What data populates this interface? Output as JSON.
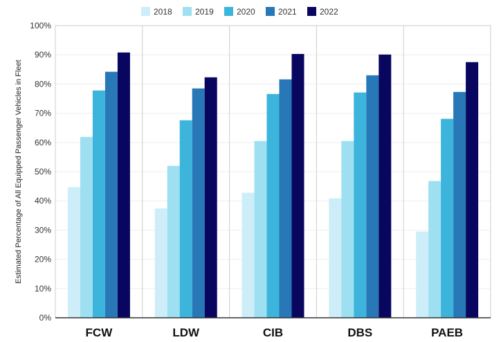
{
  "chart_data": {
    "type": "bar",
    "title": "",
    "xlabel": "",
    "ylabel": "Estimated Percentage of All Equipped Passenger Vehicles in Fleet",
    "ylim": [
      0,
      100
    ],
    "yticks": [
      "0%",
      "10%",
      "20%",
      "30%",
      "40%",
      "50%",
      "60%",
      "70%",
      "80%",
      "90%",
      "100%"
    ],
    "categories": [
      "FCW",
      "LDW",
      "CIB",
      "DBS",
      "PAEB"
    ],
    "legend_position": "top",
    "grid": true,
    "series": [
      {
        "name": "2018",
        "color": "#cdeef8",
        "values": [
          44.7,
          37.4,
          42.8,
          40.9,
          29.5
        ]
      },
      {
        "name": "2019",
        "color": "#9ee0f1",
        "values": [
          61.9,
          52.0,
          60.5,
          60.5,
          46.8
        ]
      },
      {
        "name": "2020",
        "color": "#3db4dc",
        "values": [
          77.8,
          67.6,
          76.6,
          77.1,
          68.1
        ]
      },
      {
        "name": "2021",
        "color": "#2878b8",
        "values": [
          84.2,
          78.5,
          81.6,
          83.0,
          77.3
        ]
      },
      {
        "name": "2022",
        "color": "#08065e",
        "values": [
          90.8,
          82.3,
          90.3,
          90.1,
          87.5
        ]
      }
    ]
  }
}
